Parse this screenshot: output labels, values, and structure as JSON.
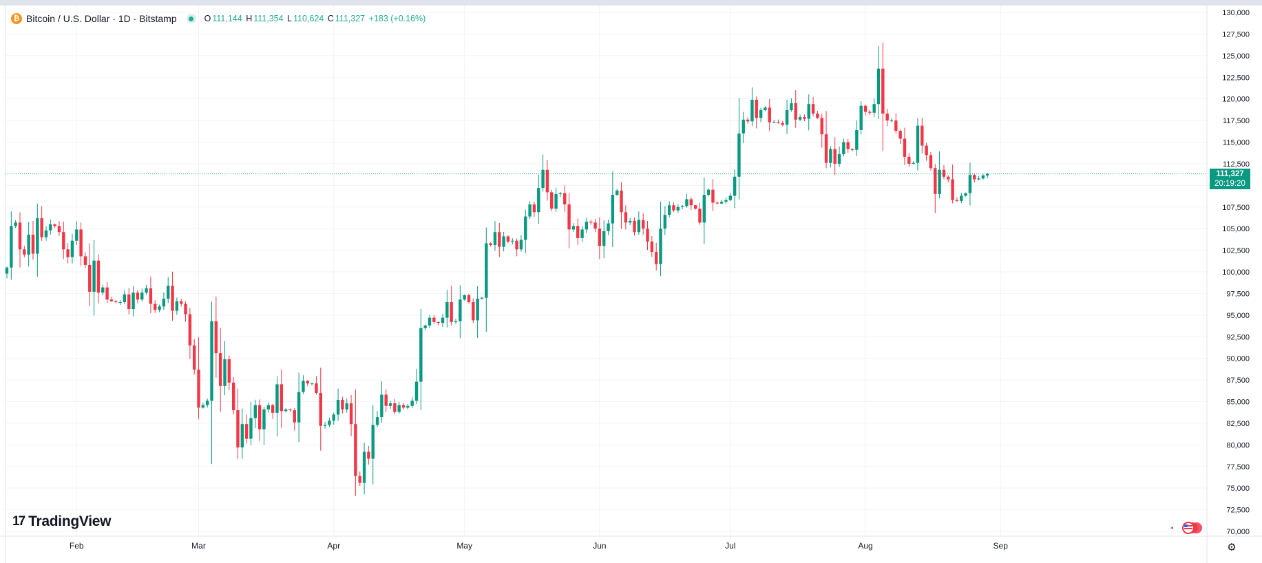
{
  "legend": {
    "symbol": "Bitcoin / U.S. Dollar · 1D · Bitstamp",
    "coin_glyph": "₿",
    "open_key": "O",
    "open": "111,144",
    "high_key": "H",
    "high": "111,354",
    "low_key": "L",
    "low": "110,624",
    "close_key": "C",
    "close": "111,327",
    "change": "+183 (+0.16%)"
  },
  "brand": {
    "name": "TradingView",
    "mark": "17"
  },
  "price_label": {
    "price": "111,327",
    "countdown": "20:19:20"
  },
  "colors": {
    "up": "#089981",
    "down": "#f23645",
    "grid": "#f0f3fa",
    "axis_text": "#131722",
    "price_line": "#089981"
  },
  "icons": {
    "settings": "gear-icon",
    "events": "flag-icon",
    "coin": "bitcoin-icon"
  },
  "chart_data": {
    "type": "candlestick",
    "ylim": [
      69000,
      130500
    ],
    "y_ticks": [
      "130,000",
      "127,500",
      "125,000",
      "122,500",
      "120,000",
      "117,500",
      "115,000",
      "112,500",
      "110,000",
      "107,500",
      "105,000",
      "102,500",
      "100,000",
      "97,500",
      "95,000",
      "92,500",
      "90,000",
      "87,500",
      "85,000",
      "82,500",
      "80,000",
      "77,500",
      "75,000",
      "72,500",
      "70,000"
    ],
    "x_labels": [
      {
        "label": "Feb",
        "index": 16
      },
      {
        "label": "Mar",
        "index": 44
      },
      {
        "label": "Apr",
        "index": 75
      },
      {
        "label": "May",
        "index": 105
      },
      {
        "label": "Jun",
        "index": 136
      },
      {
        "label": "Jul",
        "index": 166
      },
      {
        "label": "Aug",
        "index": 197
      },
      {
        "label": "Sep",
        "index": 228
      }
    ],
    "current_price": 111327,
    "close_series": [
      100500,
      105300,
      105700,
      102600,
      102000,
      104300,
      102100,
      106200,
      104000,
      104800,
      105500,
      105300,
      104600,
      102600,
      101700,
      103600,
      104900,
      101800,
      100800,
      97700,
      101300,
      97600,
      98200,
      96800,
      96600,
      96500,
      96500,
      97400,
      95700,
      97600,
      96800,
      97600,
      98100,
      96300,
      95600,
      96000,
      96900,
      98400,
      95500,
      96600,
      96300,
      95100,
      91500,
      88700,
      84300,
      84600,
      85100,
      94300,
      90600,
      86800,
      89900,
      87200,
      84000,
      79700,
      82400,
      80700,
      83100,
      84600,
      81800,
      84100,
      84600,
      83700,
      87000,
      83900,
      84100,
      84000,
      82600,
      86100,
      87400,
      87100,
      87100,
      86000,
      82200,
      82300,
      82800,
      83500,
      85200,
      84100,
      84800,
      82400,
      76400,
      75600,
      79200,
      78400,
      82300,
      83200,
      85800,
      84500,
      84800,
      83800,
      84600,
      84300,
      84500,
      85100,
      87300,
      93500,
      93800,
      94700,
      94200,
      94100,
      94700,
      96500,
      94200,
      94300,
      96800,
      97300,
      96500,
      94400,
      96900,
      97000,
      103300,
      103100,
      104600,
      102900,
      104100,
      103500,
      103600,
      102600,
      103700,
      106400,
      107800,
      106900,
      109700,
      111800,
      109200,
      107300,
      109000,
      109100,
      107800,
      104900,
      105300,
      103900,
      104900,
      105800,
      105700,
      105000,
      103000,
      104700,
      105600,
      108900,
      109400,
      106900,
      105700,
      105900,
      104600,
      106000,
      105000,
      103500,
      102300,
      100900,
      105000,
      106600,
      107700,
      107100,
      107500,
      107600,
      108400,
      107700,
      107300,
      105700,
      108900,
      109500,
      108000,
      107900,
      108100,
      108300,
      108800,
      111000,
      116000,
      117600,
      117400,
      119900,
      117800,
      118700,
      119000,
      117300,
      117300,
      117200,
      117000,
      118700,
      119500,
      117600,
      117900,
      117700,
      119400,
      118300,
      117800,
      115900,
      112600,
      114200,
      112500,
      113600,
      115000,
      114200,
      114100,
      116400,
      119200,
      118500,
      118400,
      119400,
      123500,
      118300,
      117500,
      117500,
      116300,
      115400,
      113300,
      112500,
      112600,
      116900,
      114600,
      113500,
      112000,
      109000,
      111800,
      111000,
      110700,
      108300,
      108200,
      108800,
      109100,
      111200,
      110700,
      110800,
      111144,
      111327
    ]
  }
}
